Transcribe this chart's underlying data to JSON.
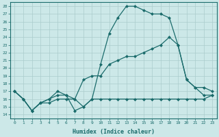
{
  "xlabel": "Humidex (Indice chaleur)",
  "bg_color": "#cce8e8",
  "grid_color": "#aacccc",
  "line_color": "#1a6b6b",
  "marker": "D",
  "markersize": 2,
  "linewidth": 0.9,
  "xlim": [
    -0.5,
    23.5
  ],
  "ylim": [
    13.5,
    28.5
  ],
  "xticks": [
    0,
    1,
    2,
    3,
    4,
    5,
    6,
    7,
    8,
    9,
    10,
    11,
    12,
    13,
    14,
    15,
    16,
    17,
    18,
    19,
    20,
    21,
    22,
    23
  ],
  "yticks": [
    14,
    15,
    16,
    17,
    18,
    19,
    20,
    21,
    22,
    23,
    24,
    25,
    26,
    27,
    28
  ],
  "lines": [
    {
      "x": [
        0,
        1,
        2,
        3,
        4,
        5,
        6,
        7,
        8,
        9,
        10,
        11,
        12,
        13,
        14,
        15,
        16,
        17,
        18,
        19,
        20,
        21,
        22,
        23
      ],
      "y": [
        17,
        16,
        14.5,
        15.5,
        15.5,
        16,
        16,
        16,
        15,
        16,
        16,
        16,
        16,
        16,
        16,
        16,
        16,
        16,
        16,
        16,
        16,
        16,
        16,
        16.5
      ]
    },
    {
      "x": [
        0,
        1,
        2,
        3,
        4,
        5,
        6,
        7,
        8,
        9,
        10,
        11,
        12,
        13,
        14,
        15,
        16,
        17,
        18,
        19,
        20,
        21,
        22,
        23
      ],
      "y": [
        17,
        16,
        14.5,
        15.5,
        16,
        16.5,
        16.5,
        14.5,
        15,
        16,
        20.5,
        24.5,
        26.5,
        28,
        28,
        27.5,
        27,
        27,
        26.5,
        23,
        18.5,
        17.5,
        16.5,
        16.5
      ]
    },
    {
      "x": [
        0,
        1,
        2,
        3,
        4,
        5,
        6,
        7,
        8,
        9,
        10,
        11,
        12,
        13,
        14,
        15,
        16,
        17,
        18,
        19,
        20,
        21,
        22,
        23
      ],
      "y": [
        17,
        16,
        14.5,
        15.5,
        16,
        17,
        16.5,
        16,
        18.5,
        19,
        19,
        20.5,
        21,
        21.5,
        21.5,
        22,
        22.5,
        23,
        24,
        23,
        18.5,
        17.5,
        17.5,
        17
      ]
    }
  ]
}
